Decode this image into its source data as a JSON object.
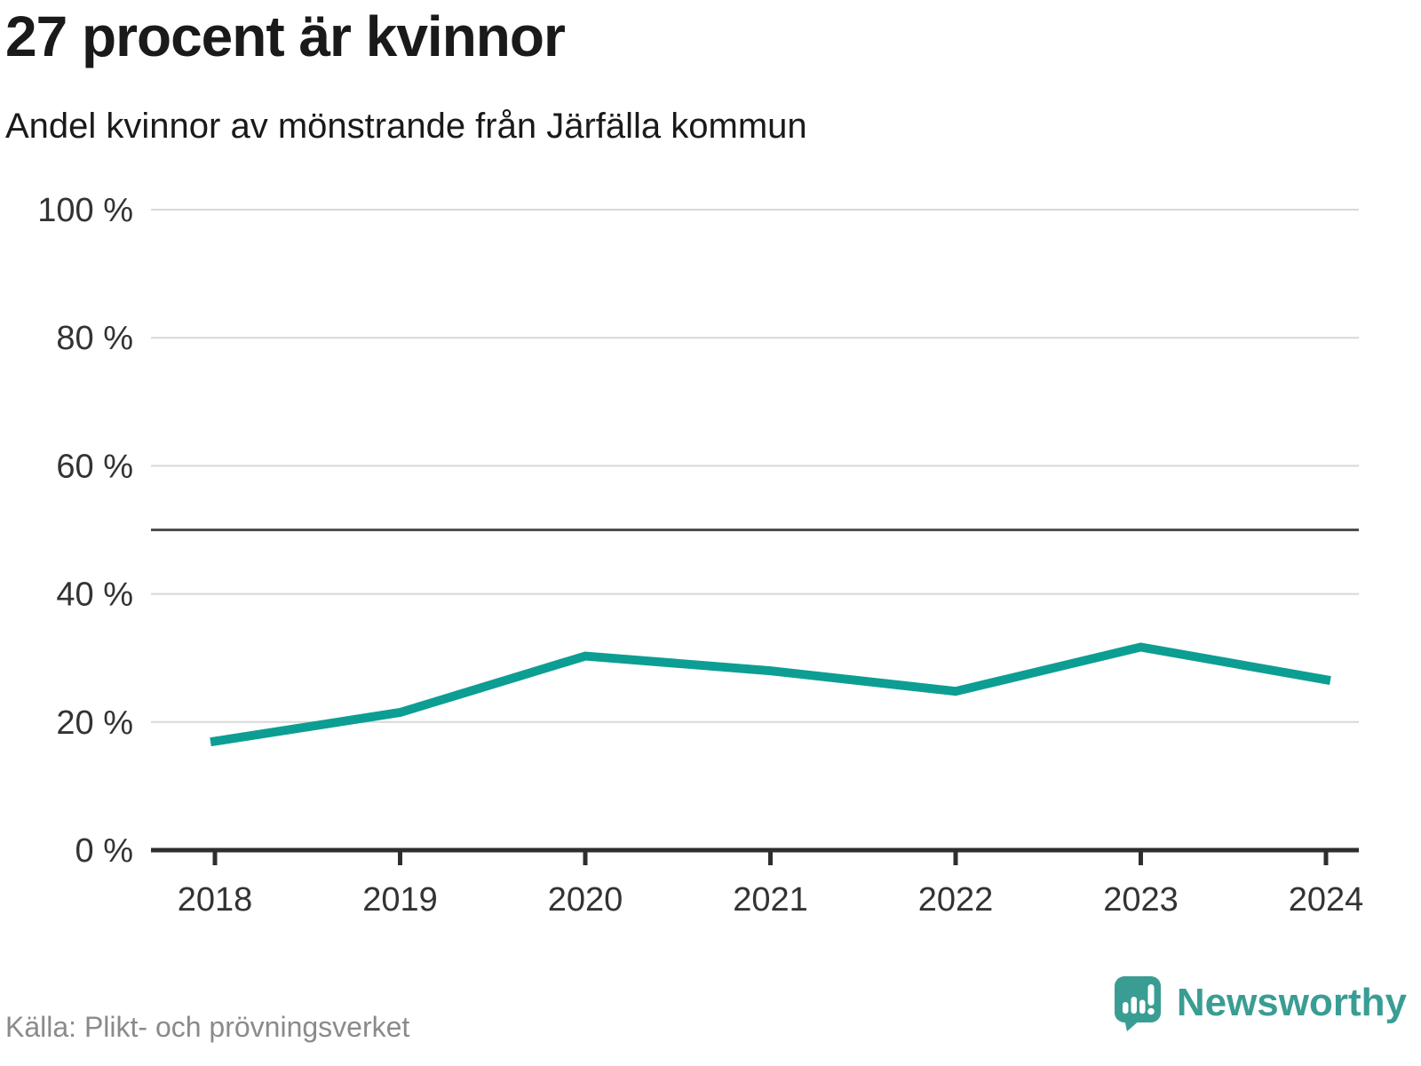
{
  "header": {
    "title": "27 procent är kvinnor",
    "subtitle": "Andel kvinnor av mönstrande från Järfälla kommun"
  },
  "footer": {
    "source": "Källa: Plikt- och prövningsverket",
    "brand_name": "Newsworthy"
  },
  "colors": {
    "line": "#0d9e93",
    "grid": "#d8d8d8",
    "reference_line": "#4d4d4d",
    "axis": "#2e2e2e",
    "tick_label": "#333333",
    "brand": "#3a9d93"
  },
  "chart_data": {
    "type": "line",
    "title": "27 procent är kvinnor",
    "subtitle": "Andel kvinnor av mönstrande från Järfälla kommun",
    "categories": [
      "2018",
      "2019",
      "2020",
      "2021",
      "2022",
      "2023",
      "2024"
    ],
    "series": [
      {
        "name": "Andel kvinnor av mönstrande",
        "values": [
          17,
          21.5,
          30.3,
          28,
          24.8,
          31.7,
          26.6
        ]
      }
    ],
    "xlabel": "",
    "ylabel": "",
    "ylim": [
      0,
      100
    ],
    "yticks": [
      0,
      20,
      40,
      60,
      80,
      100
    ],
    "ytick_suffix": " %",
    "reference_line_y": 50,
    "grid": "horizontal",
    "legend": "none",
    "line_width": 10
  }
}
